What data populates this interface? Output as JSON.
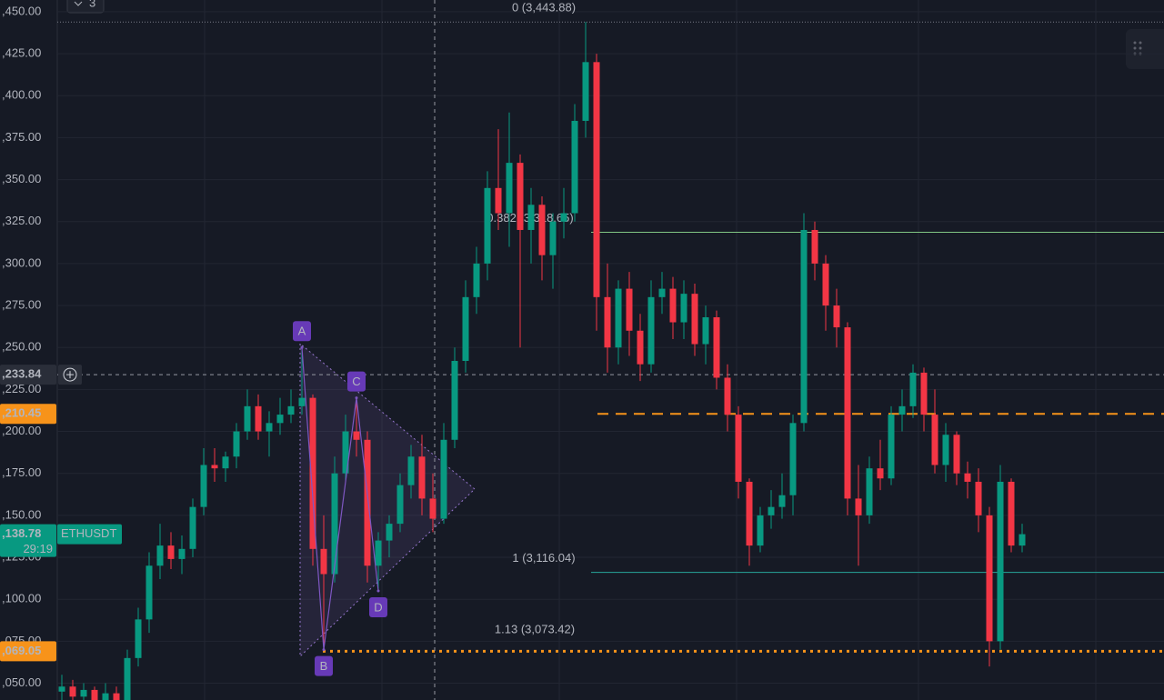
{
  "chart_data": {
    "type": "candlestick",
    "symbol": "ETHUSDT",
    "countdown": "29:19",
    "badge": "3",
    "up_color": "#089981",
    "down_color": "#f23645",
    "ylim": [
      3040,
      3457
    ],
    "yticks": [
      {
        "value": 3050,
        "label": ",050.00"
      },
      {
        "value": 3075,
        "label": ",075.00"
      },
      {
        "value": 3100,
        "label": ",100.00"
      },
      {
        "value": 3125,
        "label": ",125.00"
      },
      {
        "value": 3150,
        "label": ",150.00"
      },
      {
        "value": 3175,
        "label": ",175.00"
      },
      {
        "value": 3200,
        "label": ",200.00"
      },
      {
        "value": 3225,
        "label": ",225.00"
      },
      {
        "value": 3250,
        "label": ",250.00"
      },
      {
        "value": 3275,
        "label": ",275.00"
      },
      {
        "value": 3300,
        "label": ",300.00"
      },
      {
        "value": 3325,
        "label": ",325.00"
      },
      {
        "value": 3350,
        "label": ",350.00"
      },
      {
        "value": 3375,
        "label": ",375.00"
      },
      {
        "value": 3400,
        "label": ",400.00"
      },
      {
        "value": 3425,
        "label": ",425.00"
      },
      {
        "value": 3450,
        "label": ",450.00"
      }
    ],
    "candles": [
      [
        3045,
        3055,
        3035,
        3048
      ],
      [
        3048,
        3052,
        3038,
        3042
      ],
      [
        3042,
        3050,
        3030,
        3046
      ],
      [
        3046,
        3048,
        3028,
        3036
      ],
      [
        3036,
        3050,
        3030,
        3044
      ],
      [
        3044,
        3048,
        3028,
        3034
      ],
      [
        3040,
        3070,
        3036,
        3065
      ],
      [
        3065,
        3095,
        3060,
        3088
      ],
      [
        3088,
        3128,
        3080,
        3120
      ],
      [
        3120,
        3145,
        3112,
        3132
      ],
      [
        3132,
        3140,
        3118,
        3124
      ],
      [
        3124,
        3138,
        3115,
        3130
      ],
      [
        3130,
        3160,
        3125,
        3155
      ],
      [
        3155,
        3190,
        3150,
        3180
      ],
      [
        3180,
        3190,
        3170,
        3178
      ],
      [
        3178,
        3188,
        3170,
        3185
      ],
      [
        3185,
        3205,
        3178,
        3200
      ],
      [
        3200,
        3225,
        3195,
        3215
      ],
      [
        3215,
        3222,
        3195,
        3200
      ],
      [
        3200,
        3212,
        3185,
        3205
      ],
      [
        3205,
        3220,
        3198,
        3210
      ],
      [
        3210,
        3225,
        3205,
        3215
      ],
      [
        3215,
        3250,
        3210,
        3220
      ],
      [
        3220,
        3222,
        3120,
        3130
      ],
      [
        3130,
        3150,
        3070,
        3115
      ],
      [
        3115,
        3185,
        3110,
        3175
      ],
      [
        3175,
        3210,
        3170,
        3200
      ],
      [
        3200,
        3220,
        3185,
        3195
      ],
      [
        3195,
        3200,
        3110,
        3120
      ],
      [
        3120,
        3140,
        3105,
        3135
      ],
      [
        3135,
        3150,
        3125,
        3145
      ],
      [
        3145,
        3175,
        3140,
        3168
      ],
      [
        3168,
        3192,
        3160,
        3185
      ],
      [
        3185,
        3198,
        3150,
        3160
      ],
      [
        3160,
        3175,
        3140,
        3148
      ],
      [
        3148,
        3205,
        3145,
        3195
      ],
      [
        3195,
        3250,
        3190,
        3242
      ],
      [
        3242,
        3290,
        3235,
        3280
      ],
      [
        3280,
        3310,
        3270,
        3300
      ],
      [
        3300,
        3355,
        3290,
        3345
      ],
      [
        3345,
        3380,
        3320,
        3330
      ],
      [
        3330,
        3390,
        3310,
        3360
      ],
      [
        3360,
        3365,
        3250,
        3320
      ],
      [
        3320,
        3345,
        3300,
        3335
      ],
      [
        3335,
        3340,
        3290,
        3305
      ],
      [
        3305,
        3330,
        3285,
        3325
      ],
      [
        3325,
        3345,
        3315,
        3330
      ],
      [
        3330,
        3395,
        3325,
        3385
      ],
      [
        3385,
        3443.88,
        3375,
        3420
      ],
      [
        3420,
        3425,
        3260,
        3280
      ],
      [
        3280,
        3300,
        3235,
        3250
      ],
      [
        3250,
        3290,
        3240,
        3285
      ],
      [
        3285,
        3295,
        3245,
        3260
      ],
      [
        3260,
        3270,
        3230,
        3240
      ],
      [
        3240,
        3290,
        3235,
        3280
      ],
      [
        3280,
        3295,
        3270,
        3285
      ],
      [
        3285,
        3292,
        3255,
        3265
      ],
      [
        3265,
        3290,
        3255,
        3282
      ],
      [
        3282,
        3288,
        3245,
        3252
      ],
      [
        3252,
        3275,
        3240,
        3268
      ],
      [
        3268,
        3272,
        3225,
        3232
      ],
      [
        3232,
        3240,
        3200,
        3210
      ],
      [
        3210,
        3215,
        3160,
        3170
      ],
      [
        3170,
        3172,
        3120,
        3132
      ],
      [
        3132,
        3155,
        3128,
        3150
      ],
      [
        3150,
        3165,
        3142,
        3155
      ],
      [
        3155,
        3175,
        3148,
        3162
      ],
      [
        3162,
        3210,
        3150,
        3205
      ],
      [
        3205,
        3330,
        3200,
        3320
      ],
      [
        3320,
        3325,
        3290,
        3300
      ],
      [
        3300,
        3305,
        3260,
        3275
      ],
      [
        3275,
        3285,
        3250,
        3262
      ],
      [
        3262,
        3265,
        3150,
        3160
      ],
      [
        3160,
        3180,
        3120,
        3150
      ],
      [
        3150,
        3185,
        3145,
        3178
      ],
      [
        3178,
        3195,
        3165,
        3172
      ],
      [
        3172,
        3215,
        3168,
        3210
      ],
      [
        3210,
        3225,
        3200,
        3215
      ],
      [
        3215,
        3240,
        3208,
        3235
      ],
      [
        3235,
        3238,
        3200,
        3210
      ],
      [
        3210,
        3225,
        3175,
        3180
      ],
      [
        3180,
        3205,
        3170,
        3198
      ],
      [
        3198,
        3200,
        3168,
        3175
      ],
      [
        3175,
        3182,
        3160,
        3170
      ],
      [
        3170,
        3178,
        3140,
        3150
      ],
      [
        3150,
        3155,
        3060,
        3075
      ],
      [
        3075,
        3180,
        3070,
        3170
      ],
      [
        3170,
        3172,
        3128,
        3132
      ],
      [
        3132,
        3145,
        3128,
        3138.78
      ]
    ],
    "fib_levels": [
      {
        "label": "0 (3,443.88)",
        "value": 3443.88,
        "color": "#787b86"
      },
      {
        "label": "0.382 (3,318.65)",
        "value": 3318.65,
        "color": "#81c784"
      },
      {
        "label": "1 (3,116.04)",
        "value": 3116.04,
        "color": "#26a69a"
      },
      {
        "label": "1.13 (3,073.42)",
        "value": 3073.42,
        "color": "#64b5f6"
      }
    ],
    "alert_lines": [
      {
        "value": 3210.45,
        "color": "#f7931a",
        "style": "dashed"
      },
      {
        "value": 3069.05,
        "color": "#f7931a",
        "style": "dotted"
      }
    ],
    "price_tags": [
      {
        "label": ",233.84",
        "value": 3233.84,
        "color": "#2a2e39"
      },
      {
        "label": ",210.45",
        "value": 3210.45,
        "color": "#f7931a"
      },
      {
        "label": ",138.78",
        "value": 3138.78,
        "color": "#089981"
      },
      {
        "label": ",069.05",
        "value": 3069.05,
        "color": "#f7931a"
      }
    ],
    "crosshair": 3233.84,
    "pattern": [
      {
        "label": "A",
        "value": 3250
      },
      {
        "label": "B",
        "value": 3070
      },
      {
        "label": "C",
        "value": 3220
      },
      {
        "label": "D",
        "value": 3105
      }
    ]
  }
}
